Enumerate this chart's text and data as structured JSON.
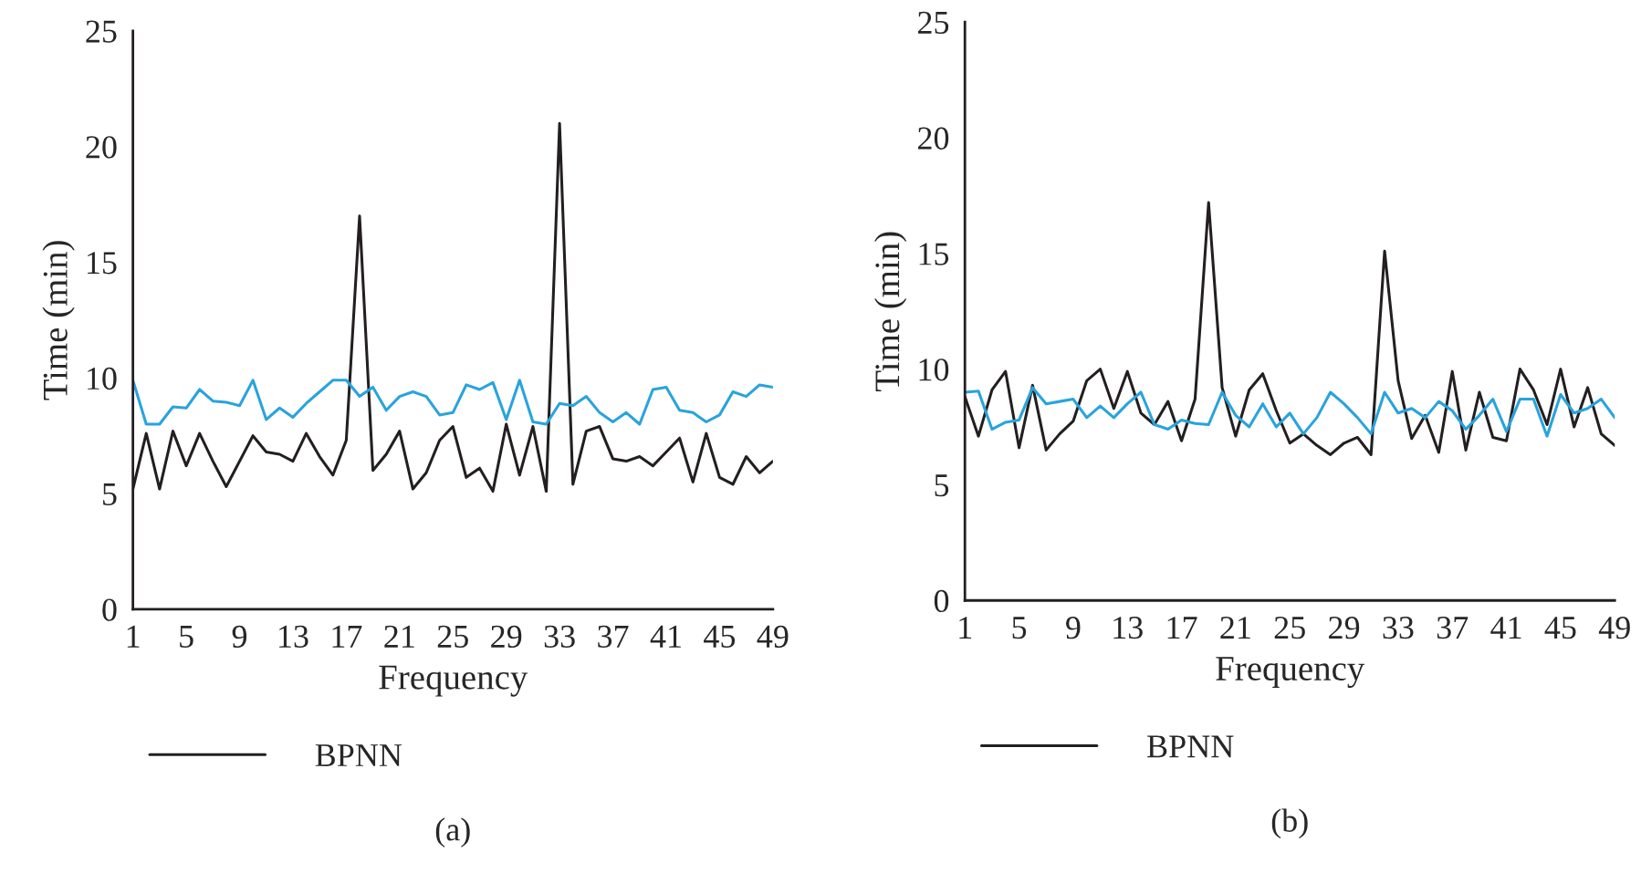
{
  "chart_data": [
    {
      "type": "line",
      "xlabel": "Frequency",
      "ylabel": "Time (min)",
      "x": [
        1,
        2,
        3,
        4,
        5,
        6,
        7,
        8,
        9,
        10,
        11,
        12,
        13,
        14,
        15,
        16,
        17,
        18,
        19,
        20,
        21,
        22,
        23,
        24,
        25,
        26,
        27,
        28,
        29,
        30,
        31,
        32,
        33,
        34,
        35,
        36,
        37,
        38,
        39,
        40,
        41,
        42,
        43,
        44,
        45,
        46,
        47,
        48,
        49
      ],
      "series": [
        {
          "name": "BPNN",
          "color": "#231f20",
          "values": [
            5.2,
            7.6,
            5.2,
            7.7,
            6.2,
            7.6,
            6.4,
            5.3,
            6.4,
            7.5,
            6.8,
            6.7,
            6.4,
            7.6,
            6.6,
            5.8,
            7.3,
            17.0,
            6.0,
            6.7,
            7.7,
            5.2,
            5.9,
            7.3,
            7.9,
            5.7,
            6.1,
            5.1,
            8.0,
            5.8,
            7.9,
            5.1,
            21.0,
            5.4,
            7.7,
            7.9,
            6.5,
            6.4,
            6.6,
            6.2,
            6.8,
            7.4,
            5.5,
            7.6,
            5.7,
            5.4,
            6.6,
            5.9,
            6.4
          ]
        },
        {
          "color": "#29a3dc",
          "values": [
            9.9,
            8.0,
            8.0,
            8.75,
            8.7,
            9.5,
            9.0,
            8.95,
            8.8,
            9.9,
            8.2,
            8.7,
            8.3,
            8.9,
            9.4,
            9.9,
            9.9,
            9.2,
            9.6,
            8.6,
            9.2,
            9.4,
            9.2,
            8.4,
            8.5,
            9.7,
            9.5,
            9.8,
            8.2,
            9.9,
            8.1,
            8.0,
            8.9,
            8.8,
            9.2,
            8.5,
            8.1,
            8.5,
            8.0,
            9.5,
            9.6,
            8.6,
            8.5,
            8.1,
            8.4,
            9.4,
            9.2,
            9.7,
            9.6
          ]
        }
      ],
      "xlim": [
        1,
        49
      ],
      "xticks": [
        1,
        5,
        9,
        13,
        17,
        21,
        25,
        29,
        33,
        37,
        41,
        45,
        49
      ],
      "ylim": [
        0,
        25
      ],
      "yticks": [
        0,
        5,
        10,
        15,
        20,
        25
      ],
      "legend": "bottom",
      "grid": false,
      "annotations": [
        "(a)"
      ]
    },
    {
      "type": "line",
      "xlabel": "Frequency",
      "ylabel": "Time (min)",
      "x": [
        1,
        2,
        3,
        4,
        5,
        6,
        7,
        8,
        9,
        10,
        11,
        12,
        13,
        14,
        15,
        16,
        17,
        18,
        19,
        20,
        21,
        22,
        23,
        24,
        25,
        26,
        27,
        28,
        29,
        30,
        31,
        32,
        33,
        34,
        35,
        36,
        37,
        38,
        39,
        40,
        41,
        42,
        43,
        44,
        45,
        46,
        47,
        48,
        49
      ],
      "series": [
        {
          "name": "BPNN",
          "color": "#231f20",
          "values": [
            8.8,
            7.1,
            9.1,
            9.9,
            6.6,
            9.3,
            6.5,
            7.2,
            7.75,
            9.5,
            10.0,
            8.3,
            9.9,
            8.1,
            7.6,
            8.6,
            6.9,
            8.7,
            17.2,
            9.2,
            7.1,
            9.1,
            9.8,
            8.2,
            6.8,
            7.2,
            6.7,
            6.3,
            6.8,
            7.05,
            6.3,
            15.1,
            9.5,
            7.0,
            8.0,
            6.4,
            9.9,
            6.5,
            9.0,
            7.05,
            6.9,
            10.0,
            9.1,
            7.6,
            10.0,
            7.5,
            9.2,
            7.2,
            6.7
          ]
        },
        {
          "color": "#29a3dc",
          "values": [
            9.0,
            9.05,
            7.4,
            7.7,
            7.8,
            9.2,
            8.5,
            8.6,
            8.7,
            7.9,
            8.4,
            7.9,
            8.5,
            9.0,
            7.6,
            7.4,
            7.8,
            7.65,
            7.6,
            9.0,
            8.0,
            7.5,
            8.5,
            7.5,
            8.1,
            7.2,
            7.9,
            9.0,
            8.5,
            7.9,
            7.2,
            9.0,
            8.1,
            8.3,
            7.9,
            8.6,
            8.2,
            7.4,
            8.0,
            8.7,
            7.3,
            8.7,
            8.7,
            7.1,
            8.9,
            8.1,
            8.3,
            8.7,
            7.9
          ]
        }
      ],
      "xlim": [
        1,
        49
      ],
      "xticks": [
        1,
        5,
        9,
        13,
        17,
        21,
        25,
        29,
        33,
        37,
        41,
        45,
        49
      ],
      "ylim": [
        0,
        25
      ],
      "yticks": [
        0,
        5,
        10,
        15,
        20,
        25
      ],
      "legend": "bottom",
      "grid": false,
      "annotations": [
        "(b)"
      ]
    }
  ]
}
